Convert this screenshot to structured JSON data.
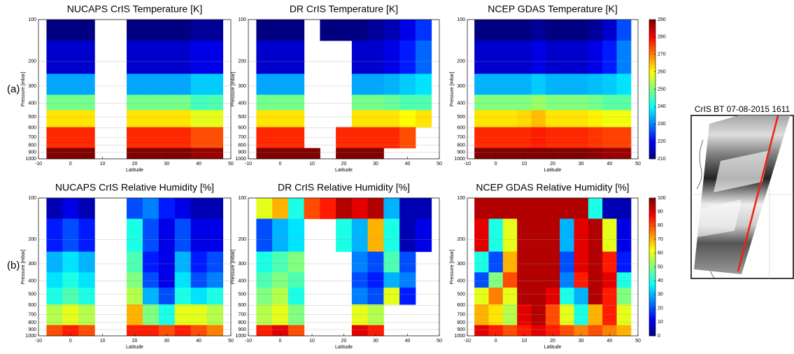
{
  "row_labels": [
    "(a)",
    "(b)"
  ],
  "image_panel": {
    "title": "CrIS BT 07-08-2015 1611"
  },
  "chart_data": [
    {
      "type": "heatmap",
      "title": "NUCAPS CrIS Temperature [K]",
      "xlabel": "Latitude",
      "ylabel": "Pressure [mbar]",
      "xlim": [
        -10,
        50
      ],
      "xticks": [
        -10,
        0,
        10,
        20,
        30,
        40,
        50
      ],
      "ylim": [
        1000,
        100
      ],
      "yscale": "log",
      "yticks": [
        100,
        200,
        300,
        400,
        500,
        600,
        700,
        800,
        900,
        1000
      ],
      "grid": true,
      "zlim": [
        210,
        290
      ],
      "x": [
        -5,
        0,
        5,
        10,
        15,
        20,
        25,
        30,
        35,
        40,
        45
      ],
      "y": [
        100,
        200,
        300,
        400,
        500,
        700,
        1000
      ],
      "z": [
        [
          210,
          210,
          210,
          null,
          null,
          210,
          210,
          210,
          210,
          212,
          212
        ],
        [
          216,
          216,
          216,
          null,
          null,
          216,
          216,
          216,
          216,
          218,
          218
        ],
        [
          233,
          233,
          233,
          null,
          null,
          233,
          233,
          233,
          233,
          236,
          236
        ],
        [
          249,
          249,
          249,
          null,
          null,
          249,
          249,
          249,
          249,
          245,
          246
        ],
        [
          262,
          262,
          262,
          null,
          null,
          262,
          262,
          262,
          262,
          258,
          258
        ],
        [
          277,
          277,
          277,
          null,
          null,
          277,
          277,
          277,
          277,
          274,
          274
        ],
        [
          290,
          290,
          290,
          null,
          null,
          290,
          290,
          290,
          290,
          288,
          288
        ]
      ]
    },
    {
      "type": "heatmap",
      "title": "DR CrIS Temperature [K]",
      "xlabel": "Latitude",
      "ylabel": "Pressure [mbar]",
      "xlim": [
        -10,
        50
      ],
      "xticks": [
        -10,
        0,
        10,
        20,
        30,
        40,
        50
      ],
      "ylim": [
        1000,
        100
      ],
      "yscale": "log",
      "yticks": [
        100,
        200,
        300,
        400,
        500,
        600,
        700,
        800,
        900,
        1000
      ],
      "grid": true,
      "zlim": [
        210,
        290
      ],
      "x": [
        -5,
        0,
        5,
        10,
        15,
        20,
        25,
        30,
        35,
        40,
        45
      ],
      "y": [
        100,
        200,
        300,
        400,
        500,
        700,
        1000
      ],
      "z": [
        [
          210,
          210,
          210,
          null,
          210,
          210,
          210,
          212,
          214,
          218,
          224
        ],
        [
          216,
          216,
          216,
          null,
          null,
          null,
          216,
          216,
          218,
          222,
          228
        ],
        [
          233,
          233,
          233,
          null,
          null,
          null,
          233,
          233,
          234,
          236,
          238
        ],
        [
          249,
          249,
          249,
          null,
          null,
          null,
          249,
          249,
          248,
          246,
          246
        ],
        [
          262,
          262,
          262,
          null,
          null,
          null,
          262,
          262,
          262,
          260,
          262
        ],
        [
          277,
          277,
          277,
          null,
          null,
          277,
          277,
          277,
          277,
          274,
          null
        ],
        [
          290,
          290,
          290,
          290,
          null,
          290,
          290,
          290,
          null,
          null,
          null
        ]
      ]
    },
    {
      "type": "heatmap",
      "title": "NCEP GDAS Temperature [K]",
      "xlabel": "Latitude",
      "ylabel": "Pressure [mbar]",
      "xlim": [
        -10,
        50
      ],
      "xticks": [
        -10,
        0,
        10,
        20,
        30,
        40,
        50
      ],
      "ylim": [
        1000,
        100
      ],
      "yscale": "log",
      "yticks": [
        100,
        200,
        300,
        400,
        500,
        600,
        700,
        800,
        900,
        1000
      ],
      "grid": true,
      "zlim": [
        210,
        290
      ],
      "colorbar": {
        "lim": [
          210,
          290
        ],
        "ticks": [
          210,
          220,
          230,
          240,
          250,
          260,
          270,
          280,
          290
        ]
      },
      "x": [
        -5,
        0,
        5,
        10,
        15,
        20,
        25,
        30,
        35,
        40,
        45
      ],
      "y": [
        100,
        200,
        300,
        400,
        500,
        700,
        1000
      ],
      "z": [
        [
          210,
          210,
          210,
          210,
          212,
          210,
          210,
          210,
          212,
          216,
          226
        ],
        [
          216,
          216,
          216,
          216,
          218,
          216,
          216,
          216,
          218,
          222,
          230
        ],
        [
          234,
          234,
          234,
          234,
          236,
          234,
          234,
          234,
          235,
          236,
          238
        ],
        [
          250,
          250,
          250,
          250,
          252,
          250,
          250,
          250,
          249,
          247,
          247
        ],
        [
          262,
          262,
          262,
          263,
          265,
          262,
          262,
          262,
          261,
          259,
          259
        ],
        [
          277,
          277,
          277,
          277,
          278,
          277,
          277,
          277,
          276,
          275,
          275
        ],
        [
          290,
          290,
          290,
          290,
          290,
          290,
          290,
          290,
          289,
          288,
          288
        ]
      ]
    },
    {
      "type": "heatmap",
      "title": "NUCAPS CrIS Relative Humidity [%]",
      "xlabel": "Latitude",
      "ylabel": "Pressure [mbar]",
      "xlim": [
        -10,
        50
      ],
      "xticks": [
        -10,
        0,
        10,
        20,
        30,
        40,
        50
      ],
      "ylim": [
        1000,
        100
      ],
      "yscale": "log",
      "yticks": [
        100,
        200,
        300,
        400,
        500,
        600,
        700,
        800,
        900,
        1000
      ],
      "grid": true,
      "zlim": [
        0,
        100
      ],
      "x": [
        -5,
        0,
        5,
        10,
        15,
        20,
        25,
        30,
        35,
        40,
        45
      ],
      "y": [
        100,
        200,
        300,
        400,
        500,
        700,
        1000
      ],
      "z": [
        [
          5,
          10,
          5,
          null,
          null,
          20,
          25,
          15,
          10,
          5,
          5
        ],
        [
          15,
          20,
          15,
          null,
          null,
          40,
          20,
          10,
          20,
          10,
          10
        ],
        [
          30,
          35,
          30,
          null,
          null,
          45,
          15,
          10,
          30,
          15,
          20
        ],
        [
          35,
          40,
          35,
          null,
          null,
          50,
          20,
          10,
          35,
          20,
          25
        ],
        [
          40,
          45,
          40,
          null,
          null,
          55,
          30,
          20,
          40,
          35,
          40
        ],
        [
          55,
          60,
          55,
          null,
          null,
          70,
          50,
          40,
          60,
          60,
          55
        ],
        [
          80,
          85,
          80,
          null,
          null,
          85,
          85,
          80,
          85,
          80,
          75
        ]
      ]
    },
    {
      "type": "heatmap",
      "title": "DR CrIS Relative Humidity [%]",
      "xlabel": "Latitude",
      "ylabel": "Pressure [mbar]",
      "xlim": [
        -10,
        50
      ],
      "xticks": [
        -10,
        0,
        10,
        20,
        30,
        40,
        50
      ],
      "ylim": [
        1000,
        100
      ],
      "yscale": "log",
      "yticks": [
        100,
        200,
        300,
        400,
        500,
        600,
        700,
        800,
        900,
        1000
      ],
      "grid": true,
      "zlim": [
        0,
        100
      ],
      "x": [
        -5,
        0,
        5,
        10,
        15,
        20,
        25,
        30,
        35,
        40,
        45
      ],
      "y": [
        100,
        200,
        300,
        400,
        500,
        700,
        1000
      ],
      "z": [
        [
          60,
          70,
          40,
          80,
          85,
          95,
          90,
          95,
          30,
          5,
          5
        ],
        [
          20,
          30,
          35,
          null,
          null,
          40,
          30,
          70,
          40,
          5,
          10
        ],
        [
          40,
          45,
          50,
          null,
          null,
          null,
          25,
          20,
          45,
          20,
          null
        ],
        [
          45,
          50,
          45,
          null,
          null,
          null,
          20,
          15,
          30,
          25,
          null
        ],
        [
          50,
          55,
          40,
          null,
          null,
          null,
          25,
          20,
          60,
          15,
          null
        ],
        [
          55,
          60,
          50,
          null,
          null,
          null,
          60,
          55,
          null,
          null,
          null
        ],
        [
          85,
          90,
          80,
          null,
          null,
          null,
          90,
          85,
          null,
          null,
          null
        ]
      ]
    },
    {
      "type": "heatmap",
      "title": "NCEP GDAS Relative Humidity [%]",
      "xlabel": "Latitude",
      "ylabel": "Pressure [mbar]",
      "xlim": [
        -10,
        50
      ],
      "xticks": [
        -10,
        0,
        10,
        20,
        30,
        40,
        50
      ],
      "ylim": [
        1000,
        100
      ],
      "yscale": "log",
      "yticks": [
        100,
        200,
        300,
        400,
        500,
        600,
        700,
        800,
        900,
        1000
      ],
      "grid": true,
      "zlim": [
        0,
        100
      ],
      "colorbar": {
        "lim": [
          0,
          100
        ],
        "ticks": [
          0,
          10,
          20,
          30,
          40,
          50,
          60,
          70,
          80,
          90,
          100
        ]
      },
      "x": [
        -5,
        0,
        5,
        10,
        15,
        20,
        25,
        30,
        35,
        40,
        45
      ],
      "y": [
        100,
        200,
        300,
        400,
        500,
        700,
        1000
      ],
      "z": [
        [
          95,
          95,
          95,
          95,
          95,
          95,
          95,
          95,
          40,
          5,
          5
        ],
        [
          90,
          40,
          60,
          95,
          95,
          95,
          30,
          90,
          95,
          60,
          10
        ],
        [
          40,
          20,
          70,
          95,
          95,
          95,
          20,
          90,
          95,
          85,
          15
        ],
        [
          20,
          50,
          80,
          95,
          95,
          95,
          25,
          85,
          95,
          90,
          40
        ],
        [
          60,
          75,
          60,
          95,
          95,
          90,
          40,
          30,
          95,
          85,
          50
        ],
        [
          70,
          65,
          55,
          90,
          95,
          80,
          60,
          40,
          70,
          85,
          60
        ],
        [
          90,
          85,
          80,
          85,
          90,
          85,
          80,
          75,
          80,
          75,
          70
        ]
      ]
    }
  ]
}
